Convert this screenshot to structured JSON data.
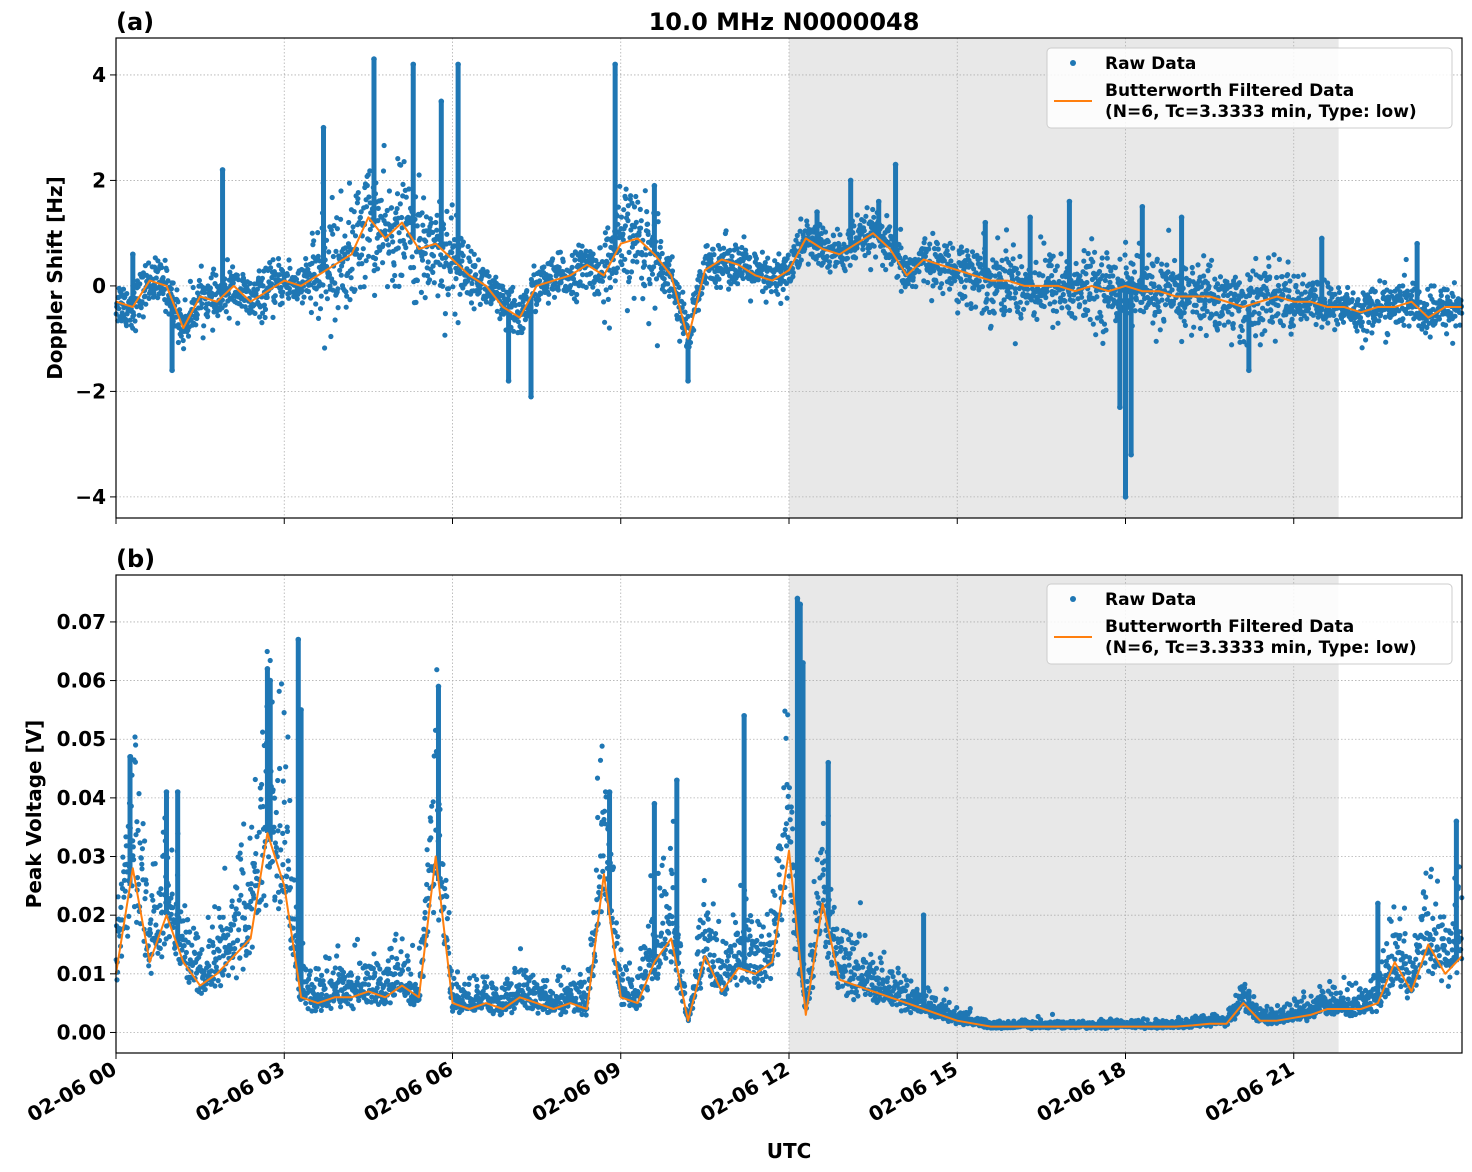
{
  "figure": {
    "title": "10.0 MHz N0000048",
    "xlabel": "UTC"
  },
  "legend": {
    "raw": "Raw Data",
    "filtered_line1": "Butterworth Filtered Data",
    "filtered_line2": "(N=6, Tc=3.3333 min, Type: low)"
  },
  "colors": {
    "raw": "#1f77b4",
    "filtered": "#ff7f0e",
    "shade": "#e8e8e8",
    "grid": "#b0b0b0"
  },
  "chart_data": [
    {
      "panel": "(a)",
      "type": "scatter",
      "ylabel": "Doppler Shift [Hz]",
      "xlim_hours": [
        0,
        24
      ],
      "ylim": [
        -4.4,
        4.7
      ],
      "yticks": [
        -4,
        -2,
        0,
        2,
        4
      ],
      "ytick_labels": [
        "−4",
        "−2",
        "0",
        "2",
        "4"
      ],
      "xticks_hours": [
        0,
        3,
        6,
        9,
        12,
        15,
        18,
        21
      ],
      "shaded_hours": [
        12,
        21.8
      ],
      "grid": true,
      "legend_placement": "top-right",
      "series": [
        {
          "name": "Butterworth Filtered Data",
          "kind": "line",
          "x": [
            0,
            0.3,
            0.6,
            0.9,
            1.2,
            1.5,
            1.8,
            2.1,
            2.4,
            2.7,
            3.0,
            3.3,
            3.6,
            3.9,
            4.2,
            4.5,
            4.8,
            5.1,
            5.4,
            5.7,
            6.0,
            6.3,
            6.6,
            6.9,
            7.2,
            7.5,
            7.8,
            8.1,
            8.4,
            8.7,
            9.0,
            9.3,
            9.6,
            9.9,
            10.2,
            10.5,
            10.8,
            11.1,
            11.4,
            11.7,
            12.0,
            12.3,
            12.6,
            12.9,
            13.2,
            13.5,
            13.8,
            14.1,
            14.4,
            14.7,
            15.0,
            15.3,
            15.6,
            15.9,
            16.2,
            16.5,
            16.8,
            17.1,
            17.4,
            17.7,
            18.0,
            18.3,
            18.6,
            18.9,
            19.2,
            19.5,
            19.8,
            20.1,
            20.4,
            20.7,
            21.0,
            21.3,
            21.6,
            21.9,
            22.2,
            22.5,
            22.8,
            23.1,
            23.4,
            23.7,
            24.0
          ],
          "y": [
            -0.3,
            -0.4,
            0.1,
            0.0,
            -0.8,
            -0.2,
            -0.3,
            0.0,
            -0.3,
            -0.1,
            0.1,
            0.0,
            0.2,
            0.4,
            0.6,
            1.3,
            0.9,
            1.2,
            0.7,
            0.8,
            0.5,
            0.2,
            0.0,
            -0.4,
            -0.6,
            0.0,
            0.1,
            0.2,
            0.4,
            0.2,
            0.8,
            0.9,
            0.6,
            0.2,
            -1.0,
            0.3,
            0.5,
            0.4,
            0.2,
            0.1,
            0.3,
            0.9,
            0.7,
            0.6,
            0.8,
            1.0,
            0.7,
            0.2,
            0.5,
            0.4,
            0.3,
            0.2,
            0.1,
            0.1,
            0.0,
            0.0,
            0.0,
            -0.1,
            0.0,
            -0.1,
            0.0,
            -0.1,
            -0.1,
            -0.2,
            -0.2,
            -0.2,
            -0.3,
            -0.4,
            -0.3,
            -0.2,
            -0.3,
            -0.3,
            -0.4,
            -0.4,
            -0.5,
            -0.4,
            -0.4,
            -0.3,
            -0.6,
            -0.4,
            -0.4
          ]
        },
        {
          "name": "Raw Data",
          "kind": "scatter",
          "x": [
            0.3,
            1.0,
            1.9,
            3.7,
            4.6,
            5.3,
            5.8,
            6.1,
            7.0,
            7.4,
            8.9,
            9.6,
            10.2,
            12.5,
            13.1,
            13.6,
            13.9,
            15.5,
            16.3,
            17.0,
            17.9,
            18.0,
            18.1,
            18.3,
            19.0,
            20.2,
            21.5,
            23.2
          ],
          "y": [
            0.6,
            -1.6,
            2.2,
            3.0,
            4.3,
            4.2,
            3.5,
            4.2,
            -1.8,
            -2.1,
            4.2,
            1.9,
            -1.8,
            1.4,
            2.0,
            1.6,
            2.3,
            1.2,
            1.3,
            1.6,
            -2.3,
            -4.0,
            -3.2,
            1.5,
            1.3,
            -1.6,
            0.9,
            0.8
          ]
        }
      ]
    },
    {
      "panel": "(b)",
      "type": "scatter",
      "ylabel": "Peak Voltage [V]",
      "xlim_hours": [
        0,
        24
      ],
      "ylim": [
        -0.0035,
        0.078
      ],
      "yticks": [
        0,
        0.01,
        0.02,
        0.03,
        0.04,
        0.05,
        0.06,
        0.07
      ],
      "ytick_labels": [
        "0.00",
        "0.01",
        "0.02",
        "0.03",
        "0.04",
        "0.05",
        "0.06",
        "0.07"
      ],
      "xticks_hours": [
        0,
        3,
        6,
        9,
        12,
        15,
        18,
        21
      ],
      "xtick_labels": [
        "02-06 00",
        "02-06 03",
        "02-06 06",
        "02-06 09",
        "02-06 12",
        "02-06 15",
        "02-06 18",
        "02-06 21"
      ],
      "shaded_hours": [
        12,
        21.8
      ],
      "grid": true,
      "legend_placement": "top-right",
      "series": [
        {
          "name": "Butterworth Filtered Data",
          "kind": "line",
          "x": [
            0,
            0.3,
            0.6,
            0.9,
            1.2,
            1.5,
            1.8,
            2.1,
            2.4,
            2.7,
            3.0,
            3.3,
            3.6,
            3.9,
            4.2,
            4.5,
            4.8,
            5.1,
            5.4,
            5.7,
            6.0,
            6.3,
            6.6,
            6.9,
            7.2,
            7.5,
            7.8,
            8.1,
            8.4,
            8.7,
            9.0,
            9.3,
            9.6,
            9.9,
            10.2,
            10.5,
            10.8,
            11.1,
            11.4,
            11.7,
            12.0,
            12.3,
            12.6,
            12.9,
            13.2,
            13.5,
            13.8,
            14.1,
            14.4,
            14.7,
            15.0,
            15.3,
            15.6,
            15.9,
            16.2,
            16.5,
            16.8,
            17.1,
            17.4,
            17.7,
            18.0,
            18.3,
            18.6,
            18.9,
            19.2,
            19.5,
            19.8,
            20.1,
            20.4,
            20.7,
            21.0,
            21.3,
            21.6,
            21.9,
            22.2,
            22.5,
            22.8,
            23.1,
            23.4,
            23.7,
            24.0
          ],
          "y": [
            0.01,
            0.028,
            0.012,
            0.02,
            0.012,
            0.008,
            0.01,
            0.013,
            0.016,
            0.034,
            0.025,
            0.006,
            0.005,
            0.006,
            0.006,
            0.007,
            0.006,
            0.008,
            0.006,
            0.03,
            0.005,
            0.004,
            0.005,
            0.004,
            0.006,
            0.005,
            0.004,
            0.005,
            0.004,
            0.027,
            0.006,
            0.005,
            0.012,
            0.016,
            0.002,
            0.013,
            0.007,
            0.011,
            0.01,
            0.012,
            0.031,
            0.003,
            0.022,
            0.009,
            0.008,
            0.007,
            0.006,
            0.005,
            0.004,
            0.003,
            0.002,
            0.0015,
            0.001,
            0.001,
            0.001,
            0.001,
            0.001,
            0.001,
            0.001,
            0.001,
            0.001,
            0.001,
            0.001,
            0.001,
            0.0012,
            0.0015,
            0.0015,
            0.005,
            0.002,
            0.002,
            0.0025,
            0.003,
            0.004,
            0.004,
            0.004,
            0.005,
            0.012,
            0.007,
            0.015,
            0.01,
            0.013
          ]
        },
        {
          "name": "Raw Data",
          "kind": "scatter",
          "x": [
            0.25,
            0.9,
            1.1,
            2.7,
            2.75,
            3.25,
            3.3,
            5.75,
            8.8,
            9.6,
            10.0,
            11.2,
            12.15,
            12.2,
            12.25,
            12.7,
            14.4,
            20.2,
            22.5,
            23.9
          ],
          "y": [
            0.047,
            0.041,
            0.041,
            0.062,
            0.06,
            0.067,
            0.055,
            0.059,
            0.041,
            0.039,
            0.043,
            0.054,
            0.074,
            0.073,
            0.063,
            0.046,
            0.02,
            0.007,
            0.022,
            0.036
          ]
        }
      ]
    }
  ]
}
